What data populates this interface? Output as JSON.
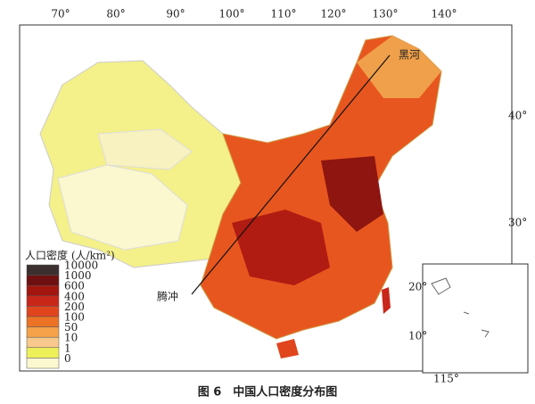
{
  "map": {
    "longitude_labels": [
      "70°",
      "80°",
      "90°",
      "100°",
      "110°",
      "120°",
      "130°",
      "140°"
    ],
    "latitude_labels": [
      "40°",
      "30°",
      "20°"
    ],
    "places": {
      "heihe": "黑河",
      "tengchong": "腾冲"
    },
    "legend": {
      "title": "人口密度 (人/km²)",
      "items": [
        {
          "label": "10000",
          "color": "#3b2f2f"
        },
        {
          "label": "1000",
          "color": "#6e1010"
        },
        {
          "label": "600",
          "color": "#a3160f"
        },
        {
          "label": "400",
          "color": "#c9261a"
        },
        {
          "label": "200",
          "color": "#e0451e"
        },
        {
          "label": "100",
          "color": "#ec7326"
        },
        {
          "label": "50",
          "color": "#f5a24a"
        },
        {
          "label": "10",
          "color": "#f8c98c"
        },
        {
          "label": "1",
          "color": "#eef05a"
        },
        {
          "label": "0",
          "color": "#fbf8cf"
        }
      ]
    },
    "inset": {
      "latitude_labels": [
        "20°",
        "10°"
      ],
      "longitude_label": "115°"
    }
  },
  "caption": "图 6　中国人口密度分布图"
}
